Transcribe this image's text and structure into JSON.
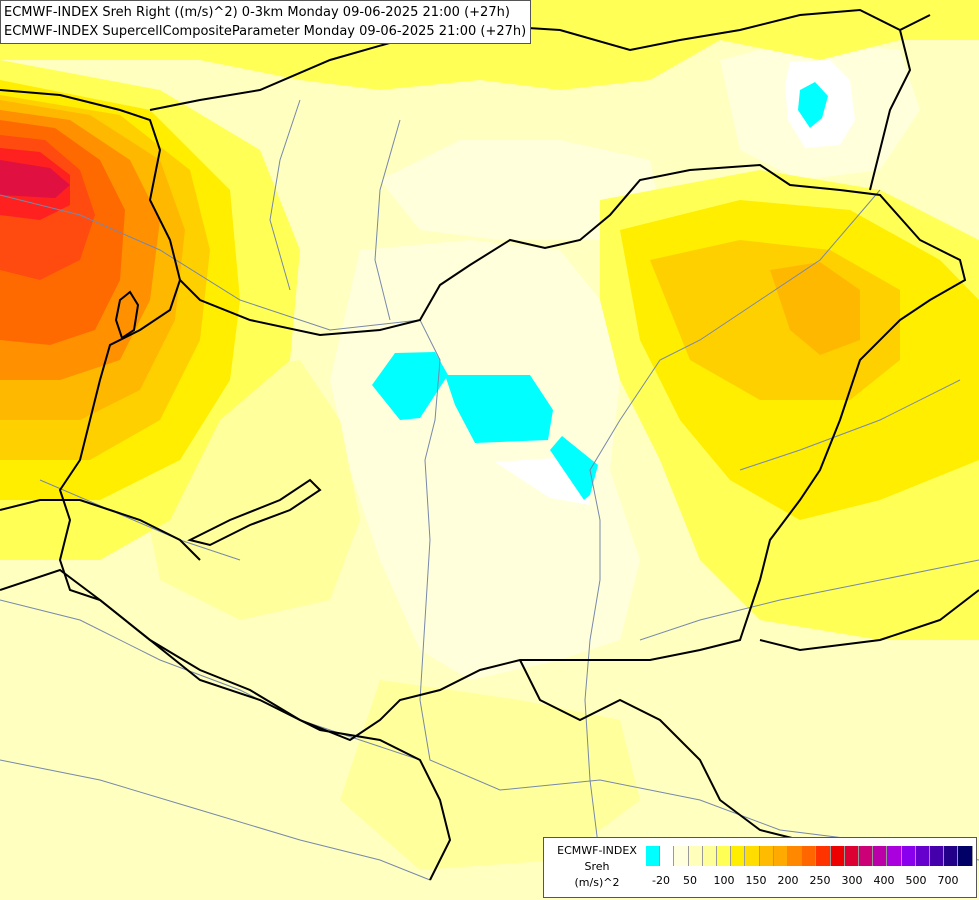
{
  "titles": {
    "line1": "ECMWF-INDEX Sreh Right ((m/s)^2) 0-3km Monday 09-06-2025 21:00 (+27h)",
    "line2": "ECMWF-INDEX SupercellCompositeParameter Monday 09-06-2025 21:00 (+27h)"
  },
  "legend": {
    "title_line1": "ECMWF-INDEX",
    "title_line2": "Sreh",
    "title_line3": "(m/s)^2",
    "colors": [
      "#00ffff",
      "#ffffff",
      "#ffffdd",
      "#ffffbb",
      "#ffff99",
      "#ffff55",
      "#ffee00",
      "#ffdd00",
      "#ffbb00",
      "#ffaa00",
      "#ff8800",
      "#ff6600",
      "#ff3300",
      "#ee0000",
      "#dd0033",
      "#cc0077",
      "#bb00aa",
      "#aa00dd",
      "#8800ee",
      "#6600cc",
      "#4400aa",
      "#220088",
      "#000066"
    ],
    "ticks": [
      "-20",
      "50",
      "100",
      "150",
      "200",
      "250",
      "300",
      "400",
      "500",
      "700"
    ]
  },
  "field_colors": {
    "base": "#ffffc0",
    "pale": "#ffffdc",
    "light": "#ffff9c",
    "yellow": "#ffff55",
    "gold": "#ffee00",
    "amber": "#ffd000",
    "orange_light": "#ffb800",
    "orange": "#ff9000",
    "orange_dark": "#ff6a00",
    "red_orange": "#ff4a10",
    "red": "#ff2020",
    "crimson": "#e01040",
    "cyan": "#00ffff",
    "white": "#ffffff"
  },
  "line_colors": {
    "border": "#000000",
    "river": "#7788aa"
  }
}
